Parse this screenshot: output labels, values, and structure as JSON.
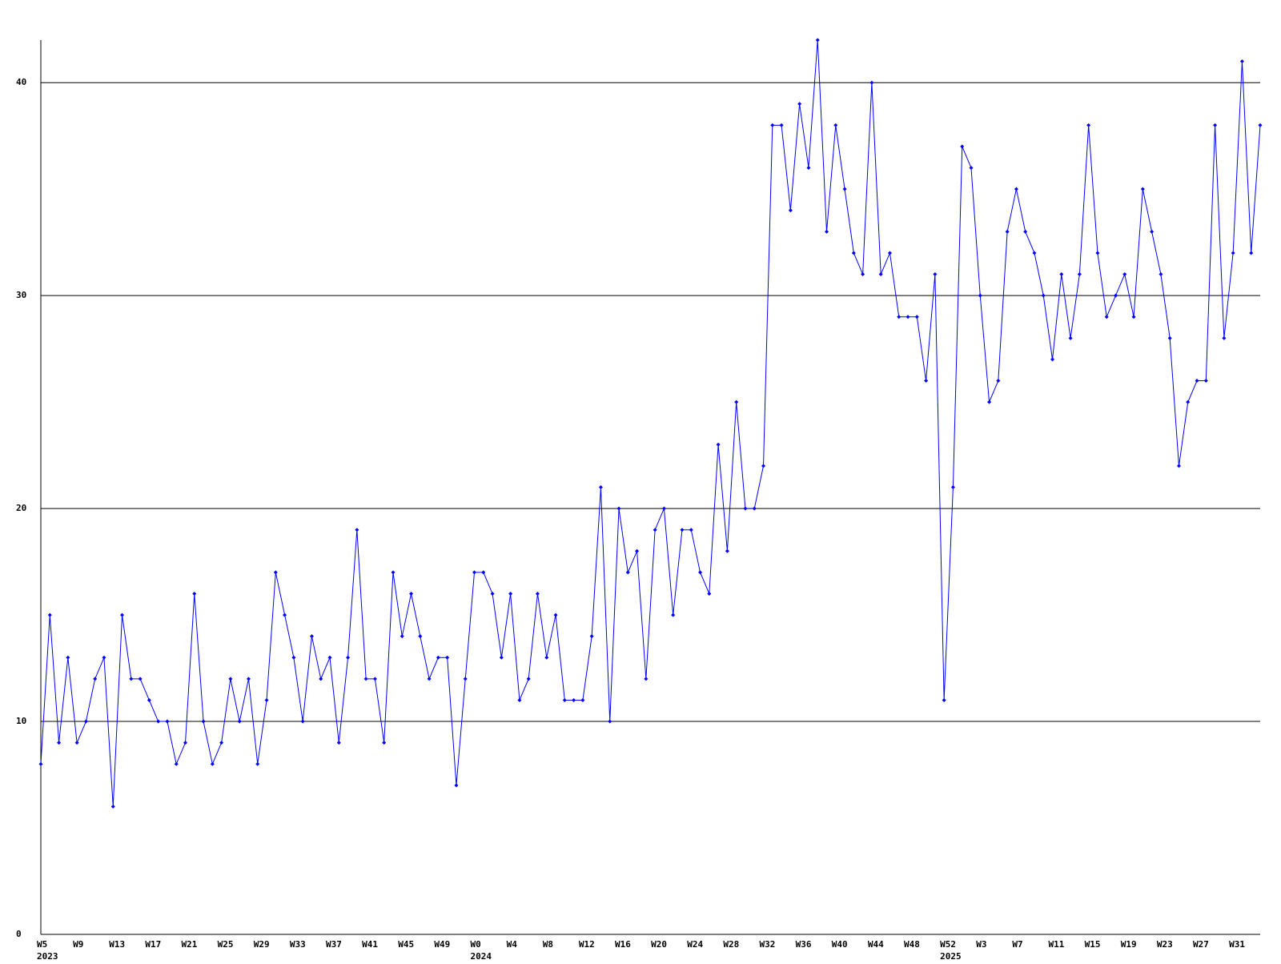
{
  "chart_data": {
    "type": "line",
    "color": "#0000ff",
    "grid": true,
    "ylim": [
      0,
      42
    ],
    "yticks": [
      0,
      10,
      20,
      30,
      40
    ],
    "categories": [
      "W5",
      null,
      null,
      null,
      "W9",
      null,
      null,
      null,
      "W13",
      null,
      null,
      null,
      "W17",
      null,
      null,
      null,
      "W21",
      null,
      null,
      null,
      "W25",
      null,
      null,
      null,
      "W29",
      null,
      null,
      null,
      "W33",
      null,
      null,
      null,
      "W37",
      null,
      null,
      null,
      "W41",
      null,
      null,
      null,
      "W45",
      null,
      null,
      null,
      "W49",
      null,
      null,
      null,
      "W0",
      null,
      null,
      null,
      "W4",
      null,
      null,
      null,
      "W8",
      null,
      null,
      null,
      "W12",
      null,
      null,
      null,
      "W16",
      null,
      null,
      null,
      "W20",
      null,
      null,
      null,
      "W24",
      null,
      null,
      null,
      "W28",
      null,
      null,
      null,
      "W32",
      null,
      null,
      null,
      "W36",
      null,
      null,
      null,
      "W40",
      null,
      null,
      null,
      "W44",
      null,
      null,
      null,
      "W48",
      null,
      null,
      null,
      "W52",
      null,
      null,
      null,
      "W3",
      null,
      null,
      null,
      "W7",
      null,
      null,
      null,
      "W11",
      null,
      null,
      null,
      "W15",
      null,
      null,
      null,
      "W19",
      null,
      null,
      null,
      "W23",
      null,
      null,
      null,
      "W27",
      null,
      null,
      null,
      "W31",
      null,
      null,
      null
    ],
    "category_years": [
      "2023",
      null,
      null,
      null,
      null,
      null,
      null,
      null,
      null,
      null,
      null,
      null,
      null,
      null,
      null,
      null,
      null,
      null,
      null,
      null,
      null,
      null,
      null,
      null,
      null,
      null,
      null,
      null,
      null,
      null,
      null,
      null,
      null,
      null,
      null,
      null,
      null,
      null,
      null,
      null,
      null,
      null,
      null,
      null,
      null,
      null,
      null,
      null,
      "2024",
      null,
      null,
      null,
      null,
      null,
      null,
      null,
      null,
      null,
      null,
      null,
      null,
      null,
      null,
      null,
      null,
      null,
      null,
      null,
      null,
      null,
      null,
      null,
      null,
      null,
      null,
      null,
      null,
      null,
      null,
      null,
      null,
      null,
      null,
      null,
      null,
      null,
      null,
      null,
      null,
      null,
      null,
      null,
      null,
      null,
      null,
      null,
      null,
      null,
      null,
      null,
      "2025",
      null,
      null,
      null,
      null,
      null,
      null,
      null,
      null,
      null,
      null,
      null,
      null,
      null,
      null,
      null,
      null,
      null,
      null,
      null,
      null,
      null,
      null,
      null,
      null,
      null,
      null,
      null,
      null,
      null,
      null,
      null,
      null,
      null,
      null,
      null
    ],
    "values": [
      8,
      15,
      9,
      13,
      9,
      10,
      12,
      13,
      6,
      15,
      12,
      12,
      11,
      10,
      10,
      8,
      9,
      16,
      10,
      8,
      9,
      12,
      10,
      12,
      8,
      11,
      17,
      15,
      13,
      10,
      14,
      12,
      13,
      9,
      13,
      19,
      12,
      12,
      9,
      17,
      14,
      16,
      14,
      12,
      13,
      13,
      7,
      12,
      17,
      17,
      16,
      13,
      16,
      11,
      12,
      16,
      13,
      15,
      11,
      11,
      11,
      14,
      21,
      10,
      20,
      17,
      18,
      12,
      19,
      20,
      15,
      19,
      19,
      17,
      16,
      23,
      18,
      25,
      20,
      20,
      22,
      38,
      38,
      34,
      39,
      36,
      42,
      33,
      38,
      35,
      32,
      31,
      40,
      31,
      32,
      29,
      29,
      29,
      26,
      31,
      11,
      21,
      37,
      36,
      30,
      25,
      26,
      33,
      35,
      33,
      32,
      30,
      27,
      31,
      28,
      31,
      38,
      32,
      29,
      30,
      31,
      29,
      35,
      33,
      31,
      28,
      22,
      25,
      26,
      26,
      38,
      28,
      32,
      41,
      32,
      38
    ]
  }
}
